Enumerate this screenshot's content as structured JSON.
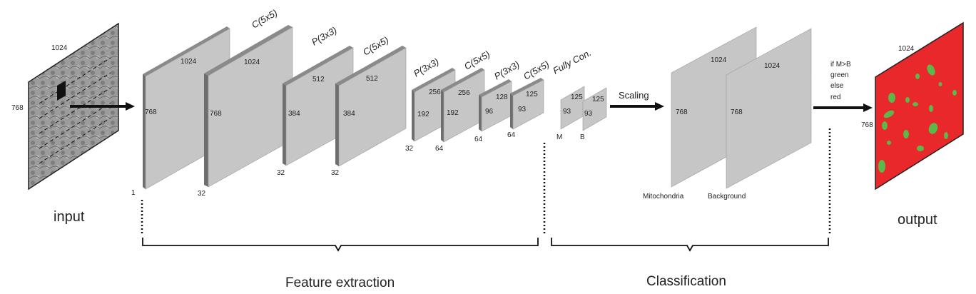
{
  "input": {
    "label": "input",
    "width": "1024",
    "height": "768"
  },
  "layers": [
    {
      "op": "",
      "depth": "1",
      "width": "1024",
      "height": "768"
    },
    {
      "op": "C(5x5)",
      "depth": "32",
      "width": "1024",
      "height": "768"
    },
    {
      "op": "P(3x3)",
      "depth": "32",
      "width": "512",
      "height": "384"
    },
    {
      "op": "C(5x5)",
      "depth": "32",
      "width": "512",
      "height": "384"
    },
    {
      "op": "P(3x3)",
      "depth": "32",
      "width": "256",
      "height": "192"
    },
    {
      "op": "C(5x5)",
      "depth": "64",
      "width": "256",
      "height": "192"
    },
    {
      "op": "P(3x3)",
      "depth": "64",
      "width": "128",
      "height": "96"
    },
    {
      "op": "C(5x5)",
      "depth": "64",
      "width": "125",
      "height": "93"
    }
  ],
  "fully_connected": {
    "label": "Fully Con.",
    "maps": [
      {
        "name": "M",
        "width": "125",
        "height": "93"
      },
      {
        "name": "B",
        "width": "125",
        "height": "93"
      }
    ]
  },
  "scaling_label": "Scaling",
  "classification_maps": [
    {
      "name": "Mitochondria",
      "width": "1024",
      "height": "768"
    },
    {
      "name": "Background",
      "width": "1024",
      "height": "768"
    }
  ],
  "rule": [
    "if M>B",
    "green",
    "else",
    "red"
  ],
  "output": {
    "label": "output",
    "width": "1024",
    "height": "768",
    "colors": {
      "background": "#e8282a",
      "foreground": "#5cb848"
    }
  },
  "brackets": {
    "feature_extraction": "Feature extraction",
    "classification": "Classification"
  }
}
